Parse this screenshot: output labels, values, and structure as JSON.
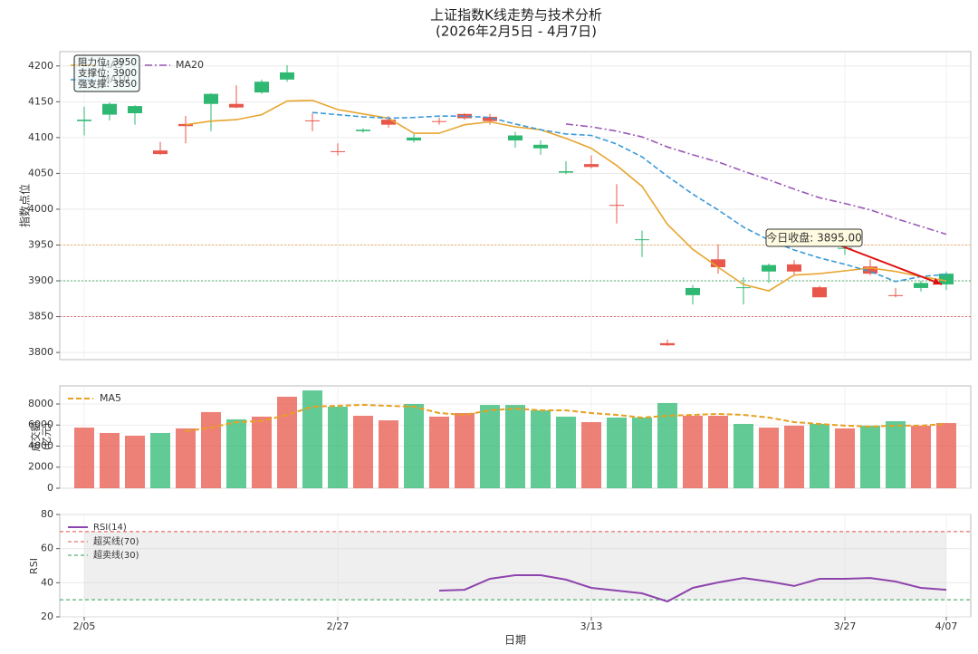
{
  "chart_data": [
    {
      "type": "candlestick",
      "title": "上证指数K线走势与技术分析",
      "subtitle": "(2026年2月5日 - 4月7日)",
      "ylabel": "指数点位",
      "ylim": [
        3790,
        4220
      ],
      "yticks": [
        3800,
        3850,
        3900,
        3950,
        4000,
        4050,
        4100,
        4150,
        4200
      ],
      "grid": true,
      "up_color": "#e8574a",
      "down_color": "#2eb872",
      "open": [
        4125,
        4147,
        4144,
        4077,
        4116,
        4161,
        4142,
        4178,
        4191,
        4123,
        4080,
        4111,
        4118,
        4100,
        4122,
        4127,
        4123,
        4103,
        4090,
        4053,
        4059,
        4005,
        3958,
        3810,
        3890,
        3919,
        3891,
        3922,
        3913,
        3877,
        3946,
        3910,
        3879,
        3897,
        3910
      ],
      "high": [
        4143,
        4149,
        4145,
        4094,
        4130,
        4162,
        4173,
        4181,
        4201,
        4134,
        4092,
        4113,
        4130,
        4105,
        4128,
        4134,
        4133,
        4108,
        4096,
        4067,
        4075,
        4035,
        3970,
        3818,
        3894,
        3951,
        3905,
        3924,
        3929,
        3893,
        3950,
        3930,
        3890,
        3900,
        3913
      ],
      "low": [
        4103,
        4124,
        4118,
        4076,
        4092,
        4109,
        4141,
        4161,
        4178,
        4109,
        4075,
        4107,
        4114,
        4093,
        4118,
        4125,
        4118,
        4086,
        4076,
        4049,
        4057,
        3980,
        3933,
        3809,
        3867,
        3910,
        3867,
        3897,
        3908,
        3877,
        3936,
        3908,
        3877,
        3885,
        3887
      ],
      "close": [
        4123,
        4132,
        4134,
        4082,
        4119,
        4147,
        4147,
        4163,
        4181,
        4124,
        4081,
        4109,
        4125,
        4096,
        4123,
        4133,
        4129,
        4096,
        4085,
        4051,
        4063,
        4006,
        3957,
        3813,
        3880,
        3930,
        3890,
        3913,
        3923,
        3891,
        3945,
        3920,
        3880,
        3890,
        3895
      ],
      "series": [
        {
          "name": "MA5",
          "color": "#e8a530",
          "dash": "solid",
          "values": [
            null,
            null,
            null,
            null,
            4118,
            4123,
            4125,
            4132,
            4151,
            4152,
            4139,
            4133,
            4127,
            4106,
            4106,
            4118,
            4122,
            4115,
            4111,
            4099,
            4085,
            4061,
            4032,
            3979,
            3944,
            3919,
            3895,
            3886,
            3908,
            3910,
            3914,
            3918,
            3913,
            3906,
            3900
          ]
        },
        {
          "name": "MA10",
          "color": "#3a9ad9",
          "dash": "dashed",
          "values": [
            null,
            null,
            null,
            null,
            null,
            null,
            null,
            null,
            null,
            4135,
            4132,
            4129,
            4127,
            4128,
            4130,
            4130,
            4128,
            4119,
            4111,
            4105,
            4103,
            4091,
            4073,
            4046,
            4021,
            3999,
            3975,
            3957,
            3943,
            3932,
            3923,
            3913,
            3899,
            3906,
            3909
          ]
        },
        {
          "name": "MA20",
          "color": "#9b59b6",
          "dash": "dashdot",
          "values": [
            null,
            null,
            null,
            null,
            null,
            null,
            null,
            null,
            null,
            null,
            null,
            null,
            null,
            null,
            null,
            null,
            null,
            null,
            null,
            4119,
            4115,
            4109,
            4101,
            4087,
            4076,
            4066,
            4053,
            4041,
            4028,
            4016,
            4008,
            3999,
            3987,
            3976,
            3965
          ]
        }
      ],
      "levels": [
        {
          "label": "阻力位: 3950",
          "value": 3950,
          "color": "#f0a040"
        },
        {
          "label": "支撑位: 3900",
          "value": 3900,
          "color": "#2e9e4f"
        },
        {
          "label": "强支撑: 3850",
          "value": 3850,
          "color": "#e0504a"
        }
      ],
      "annotation": {
        "text": "今日收盘: 3895.00",
        "color": "#e01010"
      }
    },
    {
      "type": "bar",
      "ylabel": [
        "成交额",
        "(亿元)"
      ],
      "ylim": [
        0,
        9720
      ],
      "yticks": [
        0,
        2000,
        4000,
        6000,
        8000
      ],
      "grid": true,
      "values": [
        5760,
        5250,
        4990,
        5250,
        5680,
        7230,
        6540,
        6800,
        8690,
        9290,
        7740,
        6880,
        6450,
        8000,
        6800,
        7140,
        7910,
        7910,
        7400,
        6800,
        6280,
        6710,
        6710,
        8090,
        6880,
        6880,
        6110,
        5760,
        5940,
        6110,
        5680,
        5940,
        6370,
        5940,
        6190
      ],
      "colors": [
        "#e8574a",
        "#e8574a",
        "#e8574a",
        "#2eb872",
        "#e8574a",
        "#e8574a",
        "#2eb872",
        "#e8574a",
        "#e8574a",
        "#2eb872",
        "#2eb872",
        "#e8574a",
        "#e8574a",
        "#2eb872",
        "#e8574a",
        "#e8574a",
        "#2eb872",
        "#2eb872",
        "#2eb872",
        "#2eb872",
        "#e8574a",
        "#2eb872",
        "#2eb872",
        "#2eb872",
        "#e8574a",
        "#e8574a",
        "#2eb872",
        "#e8574a",
        "#e8574a",
        "#2eb872",
        "#e8574a",
        "#2eb872",
        "#2eb872",
        "#e8574a",
        "#e8574a"
      ],
      "series": [
        {
          "name": "MA5",
          "color": "#e8a020",
          "values": [
            null,
            null,
            null,
            null,
            5420,
            5760,
            6280,
            6370,
            6970,
            7740,
            7830,
            7910,
            7830,
            7740,
            7140,
            6970,
            7400,
            7570,
            7400,
            7400,
            7140,
            6970,
            6710,
            6880,
            6970,
            7050,
            6970,
            6710,
            6280,
            6110,
            5940,
            5850,
            5940,
            5940,
            6110
          ]
        }
      ]
    },
    {
      "type": "line",
      "xlabel": "日期",
      "ylabel": "RSI",
      "categories": [
        "2/05",
        null,
        null,
        null,
        null,
        null,
        null,
        null,
        null,
        null,
        "2/27",
        null,
        null,
        null,
        null,
        null,
        null,
        null,
        null,
        null,
        "3/13",
        null,
        null,
        null,
        null,
        null,
        null,
        null,
        null,
        null,
        "3/27",
        null,
        null,
        null,
        "4/07"
      ],
      "ylim": [
        20,
        80
      ],
      "yticks": [
        20,
        40,
        60,
        80
      ],
      "grid": true,
      "series": [
        {
          "name": "RSI(14)",
          "color": "#8e44ad",
          "values": [
            null,
            null,
            null,
            null,
            null,
            null,
            null,
            null,
            null,
            null,
            null,
            null,
            null,
            null,
            35.4,
            35.9,
            42.3,
            44.4,
            44.4,
            41.8,
            37.0,
            35.4,
            33.8,
            29.0,
            37.0,
            40.2,
            42.8,
            40.7,
            38.1,
            42.3,
            42.3,
            42.8,
            40.7,
            37.0,
            35.9
          ]
        }
      ],
      "levels": [
        {
          "label": "超买线(70)",
          "value": 70,
          "color": "#e0504a"
        },
        {
          "label": "超卖线(30)",
          "value": 30,
          "color": "#2e9e4f"
        }
      ]
    }
  ]
}
